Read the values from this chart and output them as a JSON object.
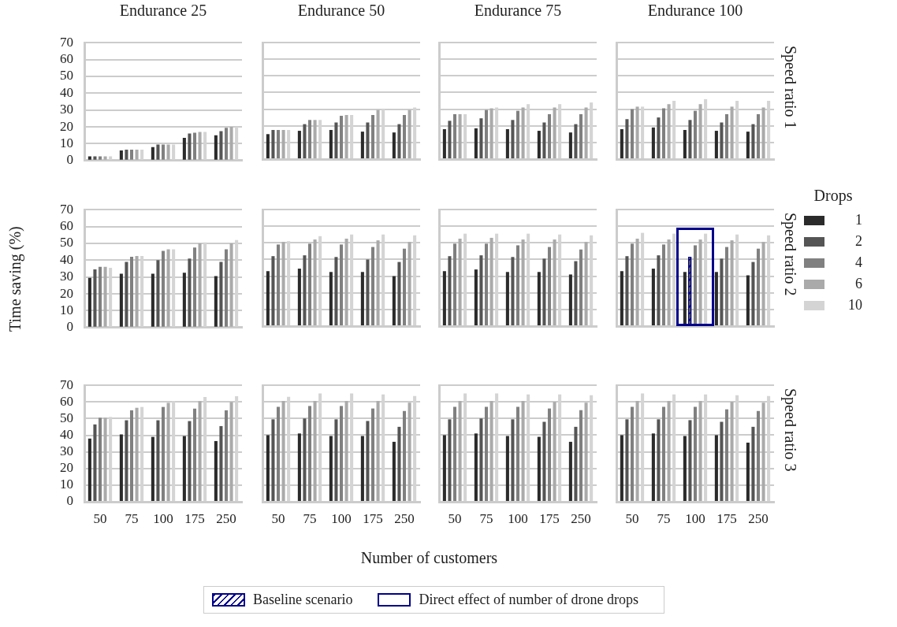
{
  "chart_data": [
    {
      "type": "bar",
      "title": "Endurance 25",
      "categories": [
        "50",
        "75",
        "100",
        "175",
        "250"
      ],
      "ylim": [
        0,
        70
      ],
      "yticks": [
        0,
        10,
        20,
        30,
        40,
        50,
        60,
        70
      ],
      "grid": "y",
      "tick_labels": "y",
      "series": [
        {
          "color": "#2b2b2b",
          "values": [
            2.5,
            6,
            8,
            13.5,
            15
          ]
        },
        {
          "color": "#555555",
          "values": [
            2.5,
            6.5,
            9.5,
            16,
            17.5
          ]
        },
        {
          "color": "#808080",
          "values": [
            2.5,
            6.5,
            9.5,
            16.5,
            19.5
          ]
        },
        {
          "color": "#aaaaaa",
          "values": [
            2.5,
            6.5,
            9.5,
            17,
            20
          ]
        },
        {
          "color": "#d4d4d4",
          "values": [
            2.5,
            6.5,
            9.5,
            17,
            20
          ]
        }
      ]
    },
    {
      "type": "bar",
      "title": "Endurance 50",
      "categories": [
        "50",
        "75",
        "100",
        "175",
        "250"
      ],
      "ylim": [
        0,
        70
      ],
      "yticks": [
        0,
        10,
        20,
        30,
        40,
        50,
        60,
        70
      ],
      "grid": "y",
      "tick_labels": false,
      "series": [
        {
          "color": "#2b2b2b",
          "values": [
            15,
            17,
            17.5,
            16.5,
            16
          ]
        },
        {
          "color": "#555555",
          "values": [
            17.5,
            21,
            22,
            22,
            21
          ]
        },
        {
          "color": "#808080",
          "values": [
            17.5,
            23.5,
            26,
            26.5,
            26.5
          ]
        },
        {
          "color": "#aaaaaa",
          "values": [
            17.5,
            23.5,
            26.5,
            29.5,
            29.5
          ]
        },
        {
          "color": "#d4d4d4",
          "values": [
            17.5,
            23.5,
            26.5,
            30,
            31
          ]
        }
      ]
    },
    {
      "type": "bar",
      "title": "Endurance 75",
      "categories": [
        "50",
        "75",
        "100",
        "175",
        "250"
      ],
      "ylim": [
        0,
        70
      ],
      "yticks": [
        0,
        10,
        20,
        30,
        40,
        50,
        60,
        70
      ],
      "grid": "y",
      "tick_labels": false,
      "series": [
        {
          "color": "#2b2b2b",
          "values": [
            18,
            18.5,
            18,
            17,
            16
          ]
        },
        {
          "color": "#555555",
          "values": [
            23,
            24.5,
            23.5,
            22,
            21
          ]
        },
        {
          "color": "#808080",
          "values": [
            27,
            29.5,
            29,
            27,
            27
          ]
        },
        {
          "color": "#aaaaaa",
          "values": [
            27,
            30.5,
            31,
            31,
            31
          ]
        },
        {
          "color": "#d4d4d4",
          "values": [
            27,
            31,
            33,
            33,
            34
          ]
        }
      ]
    },
    {
      "type": "bar",
      "title": "Endurance 100",
      "y2label": "Speed ratio 1",
      "categories": [
        "50",
        "75",
        "100",
        "175",
        "250"
      ],
      "ylim": [
        0,
        70
      ],
      "yticks": [
        0,
        10,
        20,
        30,
        40,
        50,
        60,
        70
      ],
      "grid": "y",
      "tick_labels": false,
      "series": [
        {
          "color": "#2b2b2b",
          "values": [
            18,
            19,
            17.5,
            17,
            16.5
          ]
        },
        {
          "color": "#555555",
          "values": [
            24,
            25,
            23.5,
            22,
            21
          ]
        },
        {
          "color": "#808080",
          "values": [
            30,
            30.5,
            29,
            27,
            27
          ]
        },
        {
          "color": "#aaaaaa",
          "values": [
            31.5,
            33,
            33,
            31.5,
            31
          ]
        },
        {
          "color": "#d4d4d4",
          "values": [
            31.5,
            35,
            36,
            35,
            35
          ]
        }
      ]
    },
    {
      "type": "bar",
      "ylabel": "Time saving (%)",
      "categories": [
        "50",
        "75",
        "100",
        "175",
        "250"
      ],
      "ylim": [
        0,
        70
      ],
      "yticks": [
        0,
        10,
        20,
        30,
        40,
        50,
        60,
        70
      ],
      "grid": "y",
      "tick_labels": "y",
      "series": [
        {
          "color": "#2b2b2b",
          "values": [
            29.5,
            32,
            32,
            32.5,
            30.5
          ]
        },
        {
          "color": "#555555",
          "values": [
            34.5,
            39,
            40,
            41,
            39
          ]
        },
        {
          "color": "#808080",
          "values": [
            36,
            42,
            45.5,
            47.5,
            46.5
          ]
        },
        {
          "color": "#aaaaaa",
          "values": [
            36,
            42.5,
            46.5,
            50,
            50
          ]
        },
        {
          "color": "#d4d4d4",
          "values": [
            35.5,
            42.5,
            46.5,
            50.5,
            52
          ]
        }
      ]
    },
    {
      "type": "bar",
      "categories": [
        "50",
        "75",
        "100",
        "175",
        "250"
      ],
      "ylim": [
        0,
        70
      ],
      "yticks": [
        0,
        10,
        20,
        30,
        40,
        50,
        60,
        70
      ],
      "grid": "y",
      "tick_labels": false,
      "series": [
        {
          "color": "#2b2b2b",
          "values": [
            33,
            34.5,
            32.5,
            32.5,
            30
          ]
        },
        {
          "color": "#555555",
          "values": [
            42,
            42.5,
            41.5,
            40,
            38.5
          ]
        },
        {
          "color": "#808080",
          "values": [
            49,
            49.5,
            49,
            47.5,
            46.5
          ]
        },
        {
          "color": "#aaaaaa",
          "values": [
            50.5,
            52,
            52.5,
            51.5,
            50.5
          ]
        },
        {
          "color": "#d4d4d4",
          "values": [
            51,
            54,
            55,
            55,
            54.5
          ]
        }
      ]
    },
    {
      "type": "bar",
      "categories": [
        "50",
        "75",
        "100",
        "175",
        "250"
      ],
      "ylim": [
        0,
        70
      ],
      "yticks": [
        0,
        10,
        20,
        30,
        40,
        50,
        60,
        70
      ],
      "grid": "y",
      "tick_labels": false,
      "series": [
        {
          "color": "#2b2b2b",
          "values": [
            33,
            34,
            32.5,
            32.5,
            31
          ]
        },
        {
          "color": "#555555",
          "values": [
            42,
            42.5,
            41.5,
            40.5,
            39
          ]
        },
        {
          "color": "#808080",
          "values": [
            49.5,
            49.5,
            48.5,
            47.5,
            46
          ]
        },
        {
          "color": "#aaaaaa",
          "values": [
            52.5,
            53,
            52,
            52,
            50.5
          ]
        },
        {
          "color": "#d4d4d4",
          "values": [
            55.5,
            55.5,
            55.5,
            55,
            54.5
          ]
        }
      ]
    },
    {
      "type": "bar",
      "y2label": "Speed ratio 2",
      "legend": "right",
      "legend_title": "Drops",
      "categories": [
        "50",
        "75",
        "100",
        "175",
        "250"
      ],
      "ylim": [
        0,
        70
      ],
      "yticks": [
        0,
        10,
        20,
        30,
        40,
        50,
        60,
        70
      ],
      "grid": "y",
      "tick_labels": false,
      "annotations": [
        "Baseline scenario",
        "Direct effect of number of drone drops"
      ],
      "series": [
        {
          "name": "1",
          "color": "#2b2b2b",
          "values": [
            33,
            34.5,
            32.5,
            32.5,
            30.5
          ]
        },
        {
          "name": "2",
          "color": "#555555",
          "values": [
            42,
            42.5,
            41.5,
            40.5,
            38.5
          ]
        },
        {
          "name": "4",
          "color": "#808080",
          "values": [
            49.5,
            49,
            48.5,
            47.5,
            46.5
          ]
        },
        {
          "name": "6",
          "color": "#aaaaaa",
          "values": [
            52.5,
            52,
            52,
            51.5,
            50.5
          ]
        },
        {
          "name": "10",
          "color": "#d4d4d4",
          "values": [
            56,
            55.5,
            55.5,
            55,
            54.5
          ]
        }
      ]
    },
    {
      "type": "bar",
      "categories": [
        "50",
        "75",
        "100",
        "175",
        "250"
      ],
      "ylim": [
        0,
        70
      ],
      "yticks": [
        0,
        10,
        20,
        30,
        40,
        50,
        60,
        70
      ],
      "grid": "y",
      "series": [
        {
          "color": "#2b2b2b",
          "values": [
            38,
            40.5,
            39,
            39.5,
            36.5
          ]
        },
        {
          "color": "#555555",
          "values": [
            46.5,
            49,
            49,
            48.5,
            45.5
          ]
        },
        {
          "color": "#808080",
          "values": [
            50.5,
            55,
            57,
            56,
            55
          ]
        },
        {
          "color": "#aaaaaa",
          "values": [
            50.5,
            56.5,
            59.5,
            60.5,
            60
          ]
        },
        {
          "color": "#d4d4d4",
          "values": [
            51,
            57,
            60.5,
            63,
            63.5
          ]
        }
      ]
    },
    {
      "type": "bar",
      "xlabel": "Number of customers",
      "categories": [
        "50",
        "75",
        "100",
        "175",
        "250"
      ],
      "ylim": [
        0,
        70
      ],
      "yticks": [
        0,
        10,
        20,
        30,
        40,
        50,
        60,
        70
      ],
      "grid": "y",
      "tick_labels": "x",
      "series": [
        {
          "color": "#2b2b2b",
          "values": [
            40,
            41,
            39.5,
            39.5,
            36
          ]
        },
        {
          "color": "#555555",
          "values": [
            49.5,
            50,
            49.5,
            48.5,
            45
          ]
        },
        {
          "color": "#808080",
          "values": [
            57,
            57.5,
            57.5,
            56,
            54.5
          ]
        },
        {
          "color": "#aaaaaa",
          "values": [
            60.5,
            60.5,
            60.5,
            60.5,
            59.5
          ]
        },
        {
          "color": "#d4d4d4",
          "values": [
            63,
            65,
            65,
            64.5,
            63.5
          ]
        }
      ]
    },
    {
      "type": "bar",
      "categories": [
        "50",
        "75",
        "100",
        "175",
        "250"
      ],
      "ylim": [
        0,
        70
      ],
      "yticks": [
        0,
        10,
        20,
        30,
        40,
        50,
        60,
        70
      ],
      "grid": "y",
      "tick_labels": "x",
      "series": [
        {
          "color": "#2b2b2b",
          "values": [
            40,
            41,
            39.5,
            39,
            36
          ]
        },
        {
          "color": "#555555",
          "values": [
            49.5,
            50,
            49.5,
            48,
            45
          ]
        },
        {
          "color": "#808080",
          "values": [
            57,
            57,
            57,
            56,
            55
          ]
        },
        {
          "color": "#aaaaaa",
          "values": [
            60.5,
            60.5,
            60.5,
            60,
            59.5
          ]
        },
        {
          "color": "#d4d4d4",
          "values": [
            65,
            65,
            64.5,
            64.5,
            64
          ]
        }
      ]
    },
    {
      "type": "bar",
      "y2label": "Speed ratio 3",
      "categories": [
        "50",
        "75",
        "100",
        "175",
        "250"
      ],
      "ylim": [
        0,
        70
      ],
      "yticks": [
        0,
        10,
        20,
        30,
        40,
        50,
        60,
        70
      ],
      "grid": "y",
      "tick_labels": "x",
      "series": [
        {
          "color": "#2b2b2b",
          "values": [
            40,
            41,
            39.5,
            40,
            35.5
          ]
        },
        {
          "color": "#555555",
          "values": [
            49.5,
            49.5,
            49,
            48,
            45
          ]
        },
        {
          "color": "#808080",
          "values": [
            57,
            57,
            57,
            55.5,
            54.5
          ]
        },
        {
          "color": "#aaaaaa",
          "values": [
            60.5,
            60.5,
            60.5,
            60,
            59.5
          ]
        },
        {
          "color": "#d4d4d4",
          "values": [
            65,
            64.5,
            64.5,
            64,
            63.5
          ]
        }
      ]
    }
  ]
}
